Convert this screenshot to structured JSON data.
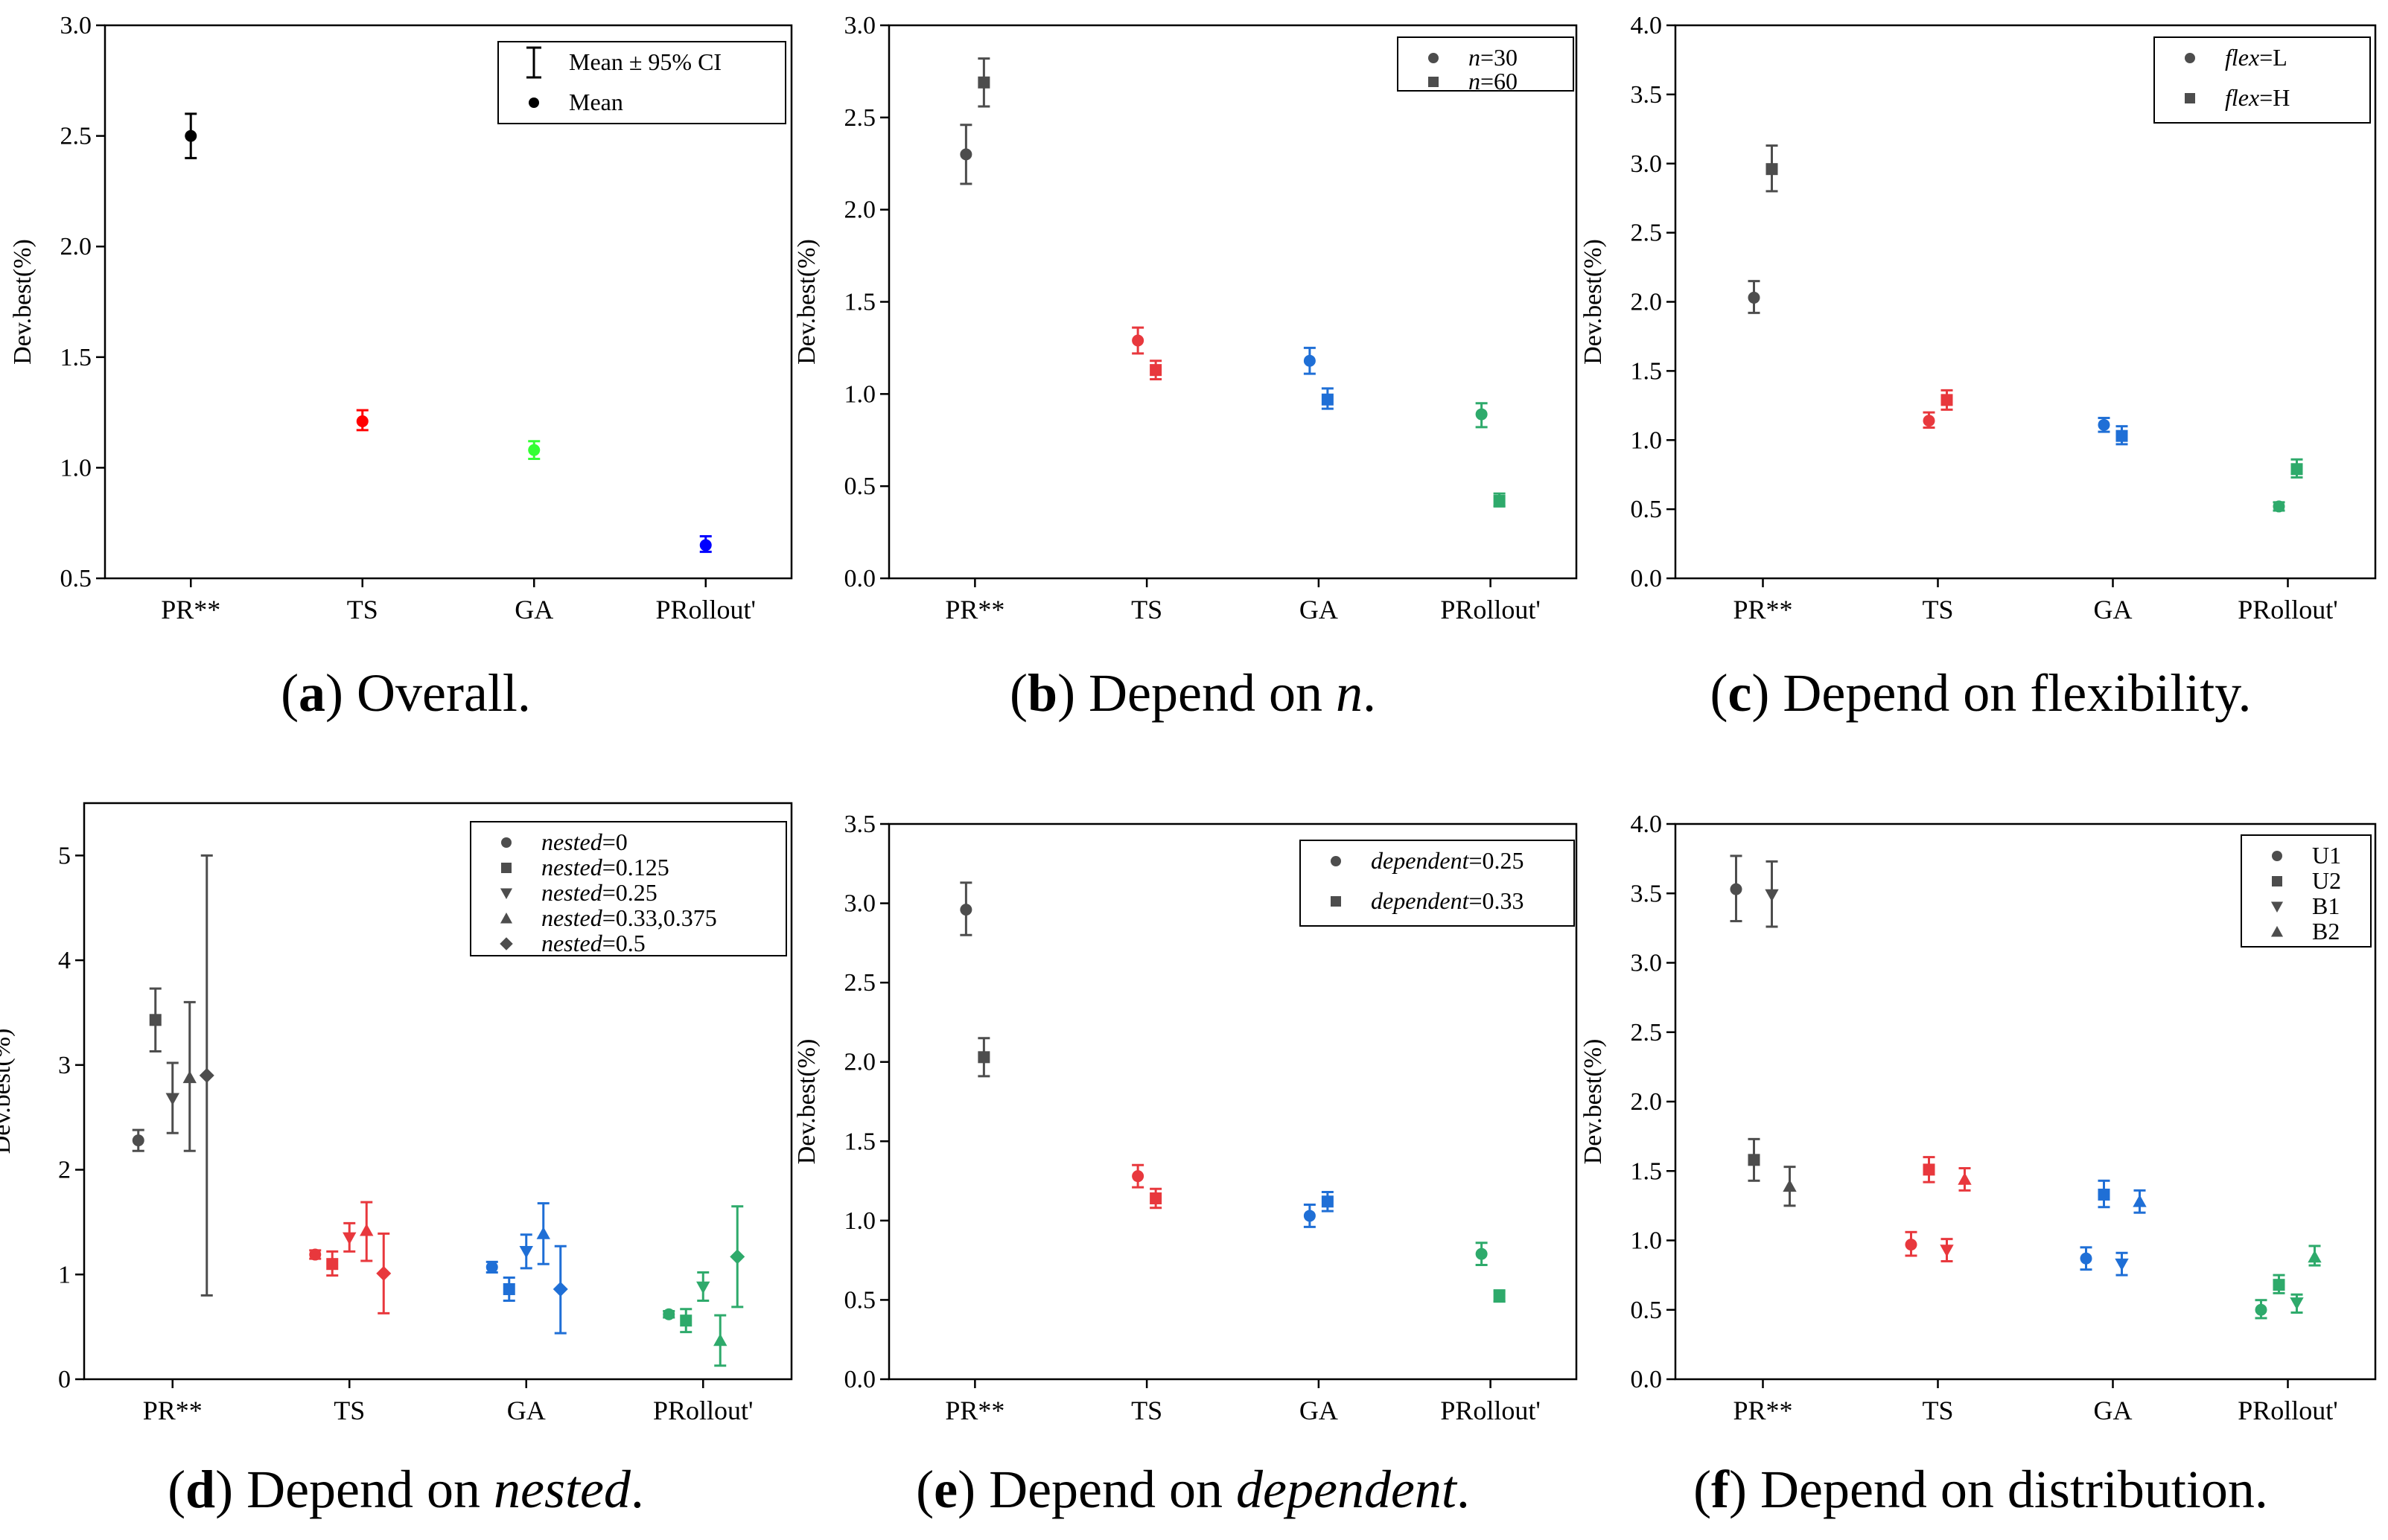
{
  "figure": {
    "panels": [
      {
        "id": "a",
        "caption_letter": "a",
        "caption_text": "Overall.",
        "caption_italic": "",
        "caption_suffix": ""
      },
      {
        "id": "b",
        "caption_letter": "b",
        "caption_text": "Depend on ",
        "caption_italic": "n",
        "caption_suffix": "."
      },
      {
        "id": "c",
        "caption_letter": "c",
        "caption_text": "Depend on flexibility.",
        "caption_italic": "",
        "caption_suffix": ""
      },
      {
        "id": "d",
        "caption_letter": "d",
        "caption_text": "Depend on ",
        "caption_italic": "nested",
        "caption_suffix": "."
      },
      {
        "id": "e",
        "caption_letter": "e",
        "caption_text": "Depend on ",
        "caption_italic": "dependent",
        "caption_suffix": "."
      },
      {
        "id": "f",
        "caption_letter": "f",
        "caption_text": "Depend on distribution.",
        "caption_italic": "",
        "caption_suffix": ""
      }
    ]
  },
  "colors": {
    "PR**": "#4d4d4d",
    "TS": "#e8383d",
    "GA": "#1f6fd6",
    "PRollout'": "#2eaa6b",
    "a_TS": "#ff0000",
    "a_GA": "#33ff33",
    "a_PRollout'": "#0000ff",
    "a_PR**": "#000000"
  },
  "chart_data": [
    {
      "type": "scatter",
      "panel": "a",
      "title": "Overall.",
      "xlabel": "",
      "ylabel": "Dev.best(%)",
      "categories": [
        "PR**",
        "TS",
        "GA",
        "PRollout'"
      ],
      "ylim": [
        0.5,
        3.0
      ],
      "yticks": [
        "0.5",
        "1.0",
        "1.5",
        "2.0",
        "2.5",
        "3.0"
      ],
      "legend": [
        {
          "label": "Mean ± 95% CI",
          "marker": "errorbar"
        },
        {
          "label": "Mean",
          "marker": "circle"
        }
      ],
      "legend_position": "top-right",
      "series": [
        {
          "name": "Mean",
          "marker": "circle",
          "points": [
            {
              "category": "PR**",
              "mean": 2.5,
              "low": 2.4,
              "high": 2.6
            },
            {
              "category": "TS",
              "mean": 1.21,
              "low": 1.17,
              "high": 1.26
            },
            {
              "category": "GA",
              "mean": 1.08,
              "low": 1.04,
              "high": 1.12
            },
            {
              "category": "PRollout'",
              "mean": 0.65,
              "low": 0.62,
              "high": 0.69
            }
          ]
        }
      ]
    },
    {
      "type": "scatter",
      "panel": "b",
      "title": "Depend on n.",
      "xlabel": "",
      "ylabel": "Dev.best(%)",
      "categories": [
        "PR**",
        "TS",
        "GA",
        "PRollout'"
      ],
      "ylim": [
        0.0,
        3.0
      ],
      "yticks": [
        "0.0",
        "0.5",
        "1.0",
        "1.5",
        "2.0",
        "2.5",
        "3.0"
      ],
      "legend": [
        {
          "italic": "n",
          "rest": "=30",
          "marker": "circle"
        },
        {
          "italic": "n",
          "rest": "=60",
          "marker": "square"
        }
      ],
      "legend_position": "top-right",
      "series": [
        {
          "name": "n=30",
          "marker": "circle",
          "points": [
            {
              "category": "PR**",
              "mean": 2.3,
              "low": 2.14,
              "high": 2.46
            },
            {
              "category": "TS",
              "mean": 1.29,
              "low": 1.22,
              "high": 1.36
            },
            {
              "category": "GA",
              "mean": 1.18,
              "low": 1.11,
              "high": 1.25
            },
            {
              "category": "PRollout'",
              "mean": 0.89,
              "low": 0.82,
              "high": 0.95
            }
          ]
        },
        {
          "name": "n=60",
          "marker": "square",
          "points": [
            {
              "category": "PR**",
              "mean": 2.69,
              "low": 2.56,
              "high": 2.82
            },
            {
              "category": "TS",
              "mean": 1.13,
              "low": 1.08,
              "high": 1.18
            },
            {
              "category": "GA",
              "mean": 0.97,
              "low": 0.92,
              "high": 1.03
            },
            {
              "category": "PRollout'",
              "mean": 0.42,
              "low": 0.39,
              "high": 0.46
            }
          ]
        }
      ]
    },
    {
      "type": "scatter",
      "panel": "c",
      "title": "Depend on flexibility.",
      "xlabel": "",
      "ylabel": "Dev.best(%)",
      "categories": [
        "PR**",
        "TS",
        "GA",
        "PRollout'"
      ],
      "ylim": [
        0.0,
        4.0
      ],
      "yticks": [
        "0.0",
        "0.5",
        "1.0",
        "1.5",
        "2.0",
        "2.5",
        "3.0",
        "3.5",
        "4.0"
      ],
      "legend": [
        {
          "italic": "flex",
          "rest": "=L",
          "marker": "circle"
        },
        {
          "italic": "flex",
          "rest": "=H",
          "marker": "square"
        }
      ],
      "legend_position": "top-right",
      "series": [
        {
          "name": "flex=L",
          "marker": "circle",
          "points": [
            {
              "category": "PR**",
              "mean": 2.03,
              "low": 1.92,
              "high": 2.15
            },
            {
              "category": "TS",
              "mean": 1.14,
              "low": 1.09,
              "high": 1.2
            },
            {
              "category": "GA",
              "mean": 1.11,
              "low": 1.06,
              "high": 1.16
            },
            {
              "category": "PRollout'",
              "mean": 0.52,
              "low": 0.49,
              "high": 0.55
            }
          ]
        },
        {
          "name": "flex=H",
          "marker": "square",
          "points": [
            {
              "category": "PR**",
              "mean": 2.96,
              "low": 2.8,
              "high": 3.13
            },
            {
              "category": "TS",
              "mean": 1.29,
              "low": 1.22,
              "high": 1.36
            },
            {
              "category": "GA",
              "mean": 1.03,
              "low": 0.97,
              "high": 1.1
            },
            {
              "category": "PRollout'",
              "mean": 0.79,
              "low": 0.73,
              "high": 0.86
            }
          ]
        }
      ]
    },
    {
      "type": "scatter",
      "panel": "d",
      "title": "Depend on nested.",
      "xlabel": "",
      "ylabel": "Dev.best(%)",
      "categories": [
        "PR**",
        "TS",
        "GA",
        "PRollout'"
      ],
      "ylim": [
        0,
        5.5
      ],
      "yticks": [
        "0",
        "1",
        "2",
        "3",
        "4",
        "5"
      ],
      "legend": [
        {
          "italic": "nested",
          "rest": "=0",
          "marker": "circle"
        },
        {
          "italic": "nested",
          "rest": "=0.125",
          "marker": "square"
        },
        {
          "italic": "nested",
          "rest": "=0.25",
          "marker": "triangle-down"
        },
        {
          "italic": "nested",
          "rest": "=0.33,0.375",
          "marker": "triangle-up"
        },
        {
          "italic": "nested",
          "rest": "=0.5",
          "marker": "diamond"
        }
      ],
      "legend_position": "top-right",
      "series": [
        {
          "name": "nested=0",
          "marker": "circle",
          "points": [
            {
              "category": "PR**",
              "mean": 2.28,
              "low": 2.18,
              "high": 2.38
            },
            {
              "category": "TS",
              "mean": 1.19,
              "low": 1.15,
              "high": 1.23
            },
            {
              "category": "GA",
              "mean": 1.07,
              "low": 1.02,
              "high": 1.12
            },
            {
              "category": "PRollout'",
              "mean": 0.62,
              "low": 0.59,
              "high": 0.65
            }
          ]
        },
        {
          "name": "nested=0.125",
          "marker": "square",
          "points": [
            {
              "category": "PR**",
              "mean": 3.43,
              "low": 3.13,
              "high": 3.73
            },
            {
              "category": "TS",
              "mean": 1.1,
              "low": 0.99,
              "high": 1.22
            },
            {
              "category": "GA",
              "mean": 0.86,
              "low": 0.75,
              "high": 0.97
            },
            {
              "category": "PRollout'",
              "mean": 0.56,
              "low": 0.45,
              "high": 0.67
            }
          ]
        },
        {
          "name": "nested=0.25",
          "marker": "triangle-down",
          "points": [
            {
              "category": "PR**",
              "mean": 2.68,
              "low": 2.35,
              "high": 3.02
            },
            {
              "category": "TS",
              "mean": 1.35,
              "low": 1.22,
              "high": 1.49
            },
            {
              "category": "GA",
              "mean": 1.22,
              "low": 1.06,
              "high": 1.38
            },
            {
              "category": "PRollout'",
              "mean": 0.88,
              "low": 0.75,
              "high": 1.02
            }
          ]
        },
        {
          "name": "nested=0.33,0.375",
          "marker": "triangle-up",
          "points": [
            {
              "category": "PR**",
              "mean": 2.88,
              "low": 2.18,
              "high": 3.6
            },
            {
              "category": "TS",
              "mean": 1.42,
              "low": 1.13,
              "high": 1.69
            },
            {
              "category": "GA",
              "mean": 1.39,
              "low": 1.1,
              "high": 1.68
            },
            {
              "category": "PRollout'",
              "mean": 0.37,
              "low": 0.13,
              "high": 0.61
            }
          ]
        },
        {
          "name": "nested=0.5",
          "marker": "diamond",
          "points": [
            {
              "category": "PR**",
              "mean": 2.9,
              "low": 0.8,
              "high": 5.0
            },
            {
              "category": "TS",
              "mean": 1.01,
              "low": 0.63,
              "high": 1.39
            },
            {
              "category": "GA",
              "mean": 0.86,
              "low": 0.44,
              "high": 1.27
            },
            {
              "category": "PRollout'",
              "mean": 1.17,
              "low": 0.69,
              "high": 1.65
            }
          ]
        }
      ]
    },
    {
      "type": "scatter",
      "panel": "e",
      "title": "Depend on dependent.",
      "xlabel": "",
      "ylabel": "Dev.best(%)",
      "categories": [
        "PR**",
        "TS",
        "GA",
        "PRollout'"
      ],
      "ylim": [
        0.0,
        3.5
      ],
      "yticks": [
        "0.0",
        "0.5",
        "1.0",
        "1.5",
        "2.0",
        "2.5",
        "3.0",
        "3.5"
      ],
      "legend": [
        {
          "italic": "dependent",
          "rest": "=0.25",
          "marker": "circle"
        },
        {
          "italic": "dependent",
          "rest": "=0.33",
          "marker": "square"
        }
      ],
      "legend_position": "top-right",
      "series": [
        {
          "name": "dependent=0.25",
          "marker": "circle",
          "points": [
            {
              "category": "PR**",
              "mean": 2.96,
              "low": 2.8,
              "high": 3.13
            },
            {
              "category": "TS",
              "mean": 1.28,
              "low": 1.21,
              "high": 1.35
            },
            {
              "category": "GA",
              "mean": 1.03,
              "low": 0.96,
              "high": 1.1
            },
            {
              "category": "PRollout'",
              "mean": 0.79,
              "low": 0.72,
              "high": 0.86
            }
          ]
        },
        {
          "name": "dependent=0.33",
          "marker": "square",
          "points": [
            {
              "category": "PR**",
              "mean": 2.03,
              "low": 1.91,
              "high": 2.15
            },
            {
              "category": "TS",
              "mean": 1.14,
              "low": 1.08,
              "high": 1.2
            },
            {
              "category": "GA",
              "mean": 1.12,
              "low": 1.06,
              "high": 1.18
            },
            {
              "category": "PRollout'",
              "mean": 0.52,
              "low": 0.49,
              "high": 0.56
            }
          ]
        }
      ]
    },
    {
      "type": "scatter",
      "panel": "f",
      "title": "Depend on distribution.",
      "xlabel": "",
      "ylabel": "Dev.best(%)",
      "categories": [
        "PR**",
        "TS",
        "GA",
        "PRollout'"
      ],
      "ylim": [
        0.0,
        4.0
      ],
      "yticks": [
        "0.0",
        "0.5",
        "1.0",
        "1.5",
        "2.0",
        "2.5",
        "3.0",
        "3.5",
        "4.0"
      ],
      "legend": [
        {
          "italic": "",
          "rest": "U1",
          "marker": "circle"
        },
        {
          "italic": "",
          "rest": "U2",
          "marker": "square"
        },
        {
          "italic": "",
          "rest": "B1",
          "marker": "triangle-down"
        },
        {
          "italic": "",
          "rest": "B2",
          "marker": "triangle-up"
        }
      ],
      "legend_position": "top-right",
      "series": [
        {
          "name": "U1",
          "marker": "circle",
          "points": [
            {
              "category": "PR**",
              "mean": 3.53,
              "low": 3.3,
              "high": 3.77
            },
            {
              "category": "TS",
              "mean": 0.97,
              "low": 0.89,
              "high": 1.06
            },
            {
              "category": "GA",
              "mean": 0.87,
              "low": 0.79,
              "high": 0.95
            },
            {
              "category": "PRollout'",
              "mean": 0.5,
              "low": 0.44,
              "high": 0.57
            }
          ]
        },
        {
          "name": "U2",
          "marker": "square",
          "points": [
            {
              "category": "PR**",
              "mean": 1.58,
              "low": 1.43,
              "high": 1.73
            },
            {
              "category": "TS",
              "mean": 1.51,
              "low": 1.42,
              "high": 1.6
            },
            {
              "category": "GA",
              "mean": 1.33,
              "low": 1.24,
              "high": 1.43
            },
            {
              "category": "PRollout'",
              "mean": 0.68,
              "low": 0.62,
              "high": 0.75
            }
          ]
        },
        {
          "name": "B1",
          "marker": "triangle-down",
          "points": [
            {
              "category": "PR**",
              "mean": 3.49,
              "low": 3.26,
              "high": 3.73
            },
            {
              "category": "TS",
              "mean": 0.93,
              "low": 0.85,
              "high": 1.01
            },
            {
              "category": "GA",
              "mean": 0.83,
              "low": 0.75,
              "high": 0.91
            },
            {
              "category": "PRollout'",
              "mean": 0.55,
              "low": 0.48,
              "high": 0.61
            }
          ]
        },
        {
          "name": "B2",
          "marker": "triangle-up",
          "points": [
            {
              "category": "PR**",
              "mean": 1.39,
              "low": 1.25,
              "high": 1.53
            },
            {
              "category": "TS",
              "mean": 1.44,
              "low": 1.36,
              "high": 1.52
            },
            {
              "category": "GA",
              "mean": 1.28,
              "low": 1.2,
              "high": 1.36
            },
            {
              "category": "PRollout'",
              "mean": 0.88,
              "low": 0.82,
              "high": 0.96
            }
          ]
        }
      ]
    }
  ]
}
